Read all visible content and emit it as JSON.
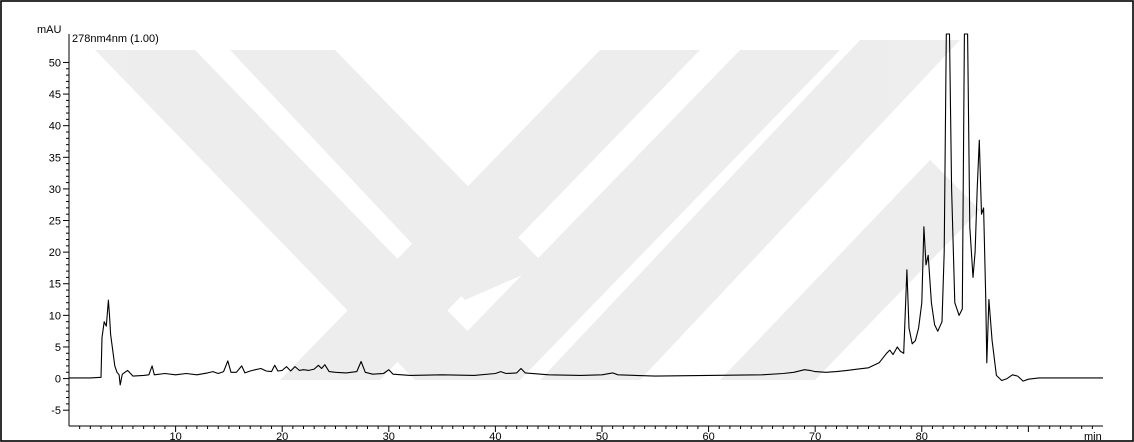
{
  "chart_data": {
    "type": "line",
    "title": "",
    "xlabel": "",
    "ylabel": "",
    "x_unit": "min",
    "y_unit": "mAU",
    "xlim": [
      0,
      97
    ],
    "ylim": [
      -7.5,
      54.5
    ],
    "x_ticks": [
      10,
      20,
      30,
      40,
      50,
      60,
      70,
      80
    ],
    "y_ticks": [
      -5,
      0,
      5,
      10,
      15,
      20,
      25,
      30,
      35,
      40,
      45,
      50
    ],
    "grid": false,
    "legend": "none",
    "series": [
      {
        "name": "278nm4nm (1.00)",
        "color": "#000000",
        "points": [
          [
            0,
            0.1
          ],
          [
            2,
            0.1
          ],
          [
            3.0,
            0.2
          ],
          [
            3.1,
            6.5
          ],
          [
            3.3,
            9.0
          ],
          [
            3.5,
            8.3
          ],
          [
            3.7,
            12.4
          ],
          [
            3.8,
            10.0
          ],
          [
            3.9,
            7.0
          ],
          [
            4.1,
            4.5
          ],
          [
            4.3,
            2.0
          ],
          [
            4.5,
            1.0
          ],
          [
            4.7,
            0.6
          ],
          [
            4.8,
            -1.0
          ],
          [
            5.0,
            0.7
          ],
          [
            5.5,
            1.3
          ],
          [
            6.0,
            0.4
          ],
          [
            7.0,
            0.5
          ],
          [
            7.5,
            0.6
          ],
          [
            7.8,
            2.0
          ],
          [
            8.0,
            0.6
          ],
          [
            9,
            0.8
          ],
          [
            10,
            0.6
          ],
          [
            11,
            0.8
          ],
          [
            12,
            0.6
          ],
          [
            13,
            0.9
          ],
          [
            13.5,
            1.1
          ],
          [
            14,
            0.8
          ],
          [
            14.5,
            1.1
          ],
          [
            14.9,
            2.8
          ],
          [
            15.2,
            1.0
          ],
          [
            15.7,
            1.0
          ],
          [
            16.2,
            2.0
          ],
          [
            16.5,
            0.9
          ],
          [
            17.0,
            1.2
          ],
          [
            17.5,
            1.4
          ],
          [
            18.0,
            1.6
          ],
          [
            18.5,
            1.2
          ],
          [
            19.0,
            1.1
          ],
          [
            19.3,
            2.1
          ],
          [
            19.6,
            1.2
          ],
          [
            20.0,
            1.3
          ],
          [
            20.4,
            1.9
          ],
          [
            20.8,
            1.2
          ],
          [
            21.2,
            1.9
          ],
          [
            21.6,
            1.3
          ],
          [
            22.0,
            1.4
          ],
          [
            22.5,
            1.3
          ],
          [
            23.0,
            1.5
          ],
          [
            23.4,
            2.1
          ],
          [
            23.7,
            1.6
          ],
          [
            24.0,
            2.2
          ],
          [
            24.4,
            1.1
          ],
          [
            25.0,
            1.0
          ],
          [
            26.0,
            0.9
          ],
          [
            27.0,
            1.1
          ],
          [
            27.4,
            2.7
          ],
          [
            27.8,
            1.0
          ],
          [
            28.5,
            0.7
          ],
          [
            29.5,
            0.8
          ],
          [
            30.0,
            1.4
          ],
          [
            30.4,
            0.7
          ],
          [
            32,
            0.5
          ],
          [
            35,
            0.6
          ],
          [
            38,
            0.5
          ],
          [
            40,
            0.8
          ],
          [
            40.5,
            1.1
          ],
          [
            41,
            0.8
          ],
          [
            42.0,
            0.9
          ],
          [
            42.4,
            1.6
          ],
          [
            42.8,
            0.9
          ],
          [
            45,
            0.6
          ],
          [
            48,
            0.5
          ],
          [
            50,
            0.6
          ],
          [
            51.0,
            0.9
          ],
          [
            51.5,
            0.6
          ],
          [
            55,
            0.4
          ],
          [
            60,
            0.5
          ],
          [
            65,
            0.6
          ],
          [
            67,
            0.8
          ],
          [
            68,
            1.0
          ],
          [
            69,
            1.4
          ],
          [
            69.5,
            1.3
          ],
          [
            70,
            1.1
          ],
          [
            71,
            1.0
          ],
          [
            72,
            1.1
          ],
          [
            73,
            1.3
          ],
          [
            74,
            1.5
          ],
          [
            75,
            1.7
          ],
          [
            76,
            2.5
          ],
          [
            76.7,
            4.0
          ],
          [
            77.0,
            4.5
          ],
          [
            77.3,
            3.8
          ],
          [
            77.7,
            5.0
          ],
          [
            78.0,
            4.3
          ],
          [
            78.3,
            4.0
          ],
          [
            78.6,
            17.2
          ],
          [
            78.8,
            8.0
          ],
          [
            79.1,
            5.5
          ],
          [
            79.4,
            6.0
          ],
          [
            79.7,
            8.0
          ],
          [
            80.0,
            12.0
          ],
          [
            80.2,
            24.0
          ],
          [
            80.4,
            18.0
          ],
          [
            80.6,
            19.5
          ],
          [
            80.9,
            12.0
          ],
          [
            81.2,
            8.5
          ],
          [
            81.5,
            7.5
          ],
          [
            81.9,
            9.0
          ],
          [
            82.1,
            20.0
          ],
          [
            82.3,
            54.5
          ],
          [
            82.6,
            54.5
          ],
          [
            82.8,
            30.0
          ],
          [
            83.1,
            12.0
          ],
          [
            83.5,
            10.0
          ],
          [
            83.8,
            11.0
          ],
          [
            84.0,
            54.5
          ],
          [
            84.3,
            54.5
          ],
          [
            84.5,
            24.0
          ],
          [
            84.8,
            16.0
          ],
          [
            85.0,
            20.0
          ],
          [
            85.2,
            30.0
          ],
          [
            85.4,
            37.7
          ],
          [
            85.6,
            26.0
          ],
          [
            85.8,
            27.0
          ],
          [
            86.0,
            13.0
          ],
          [
            86.1,
            2.5
          ],
          [
            86.3,
            12.5
          ],
          [
            86.6,
            6.0
          ],
          [
            87.0,
            0.5
          ],
          [
            87.5,
            -0.3
          ],
          [
            88.0,
            0.0
          ],
          [
            88.5,
            0.6
          ],
          [
            89.0,
            0.4
          ],
          [
            89.5,
            -0.4
          ],
          [
            90.0,
            -0.1
          ],
          [
            91,
            0.1
          ],
          [
            97,
            0.1
          ]
        ]
      }
    ]
  }
}
